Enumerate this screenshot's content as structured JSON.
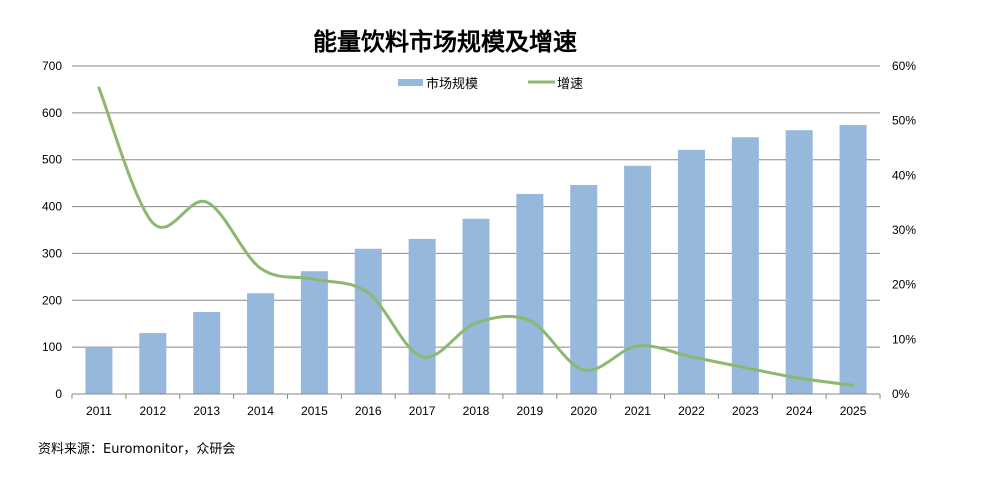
{
  "chart_data": {
    "type": "bar+line",
    "title": "能量饮料市场规模及增速",
    "categories": [
      "2011",
      "2012",
      "2013",
      "2014",
      "2015",
      "2016",
      "2017",
      "2018",
      "2019",
      "2020",
      "2021",
      "2022",
      "2023",
      "2024",
      "2025"
    ],
    "series": [
      {
        "name": "市场规模",
        "type": "bar",
        "axis": "left",
        "color": "#95B8DC",
        "values": [
          100,
          130,
          175,
          215,
          262,
          310,
          331,
          374,
          427,
          446,
          487,
          521,
          548,
          563,
          574
        ]
      },
      {
        "name": "增速",
        "type": "line",
        "axis": "right",
        "color": "#8DB870",
        "smooth": true,
        "values": [
          56.0,
          31.3,
          35.1,
          23.0,
          21.0,
          18.5,
          6.8,
          13.0,
          13.4,
          4.4,
          8.8,
          6.8,
          4.8,
          2.9,
          1.6
        ]
      }
    ],
    "y_left": {
      "range": [
        0,
        700
      ],
      "ticks": [
        "0",
        "100",
        "200",
        "300",
        "400",
        "500",
        "600",
        "700"
      ]
    },
    "y_right": {
      "range": [
        0,
        60
      ],
      "ticks": [
        "0%",
        "10%",
        "20%",
        "30%",
        "40%",
        "50%",
        "60%"
      ]
    },
    "grid": true,
    "legend": "top-center"
  },
  "source": "资料来源：Euromonitor，众研会"
}
